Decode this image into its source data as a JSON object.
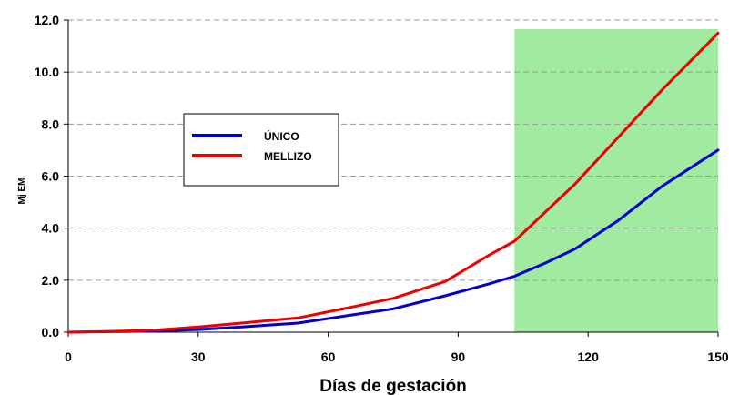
{
  "chart_data": {
    "type": "line",
    "xlabel": "Días de gestación",
    "ylabel": "Mj EM",
    "xlim": [
      0,
      150
    ],
    "ylim": [
      0,
      12
    ],
    "xticks": [
      0,
      30,
      60,
      90,
      120,
      150
    ],
    "yticks": [
      "0.0",
      "2.0",
      "4.0",
      "6.0",
      "8.0",
      "10.0",
      "12.0"
    ],
    "grid": "horizontal dashed",
    "legend_position": "left-middle",
    "highlight": {
      "x_start": 103,
      "x_end": 150,
      "color": "#90e890"
    },
    "series": [
      {
        "name": "ÚNICO",
        "color": "#0000cc",
        "x": [
          0,
          10,
          20,
          30,
          40,
          53,
          65,
          75,
          87,
          97,
          103,
          110,
          117,
          127,
          137,
          150
        ],
        "y": [
          0.0,
          0.02,
          0.05,
          0.1,
          0.2,
          0.35,
          0.65,
          0.9,
          1.4,
          1.85,
          2.15,
          2.65,
          3.2,
          4.3,
          5.6,
          7.0
        ]
      },
      {
        "name": "MELLIZO",
        "color": "#ee0000",
        "x": [
          0,
          10,
          20,
          30,
          40,
          53,
          65,
          75,
          87,
          97,
          103,
          110,
          117,
          127,
          137,
          150
        ],
        "y": [
          0.0,
          0.03,
          0.08,
          0.2,
          0.35,
          0.55,
          0.95,
          1.3,
          1.95,
          2.95,
          3.5,
          4.6,
          5.7,
          7.5,
          9.3,
          11.5
        ]
      }
    ]
  }
}
